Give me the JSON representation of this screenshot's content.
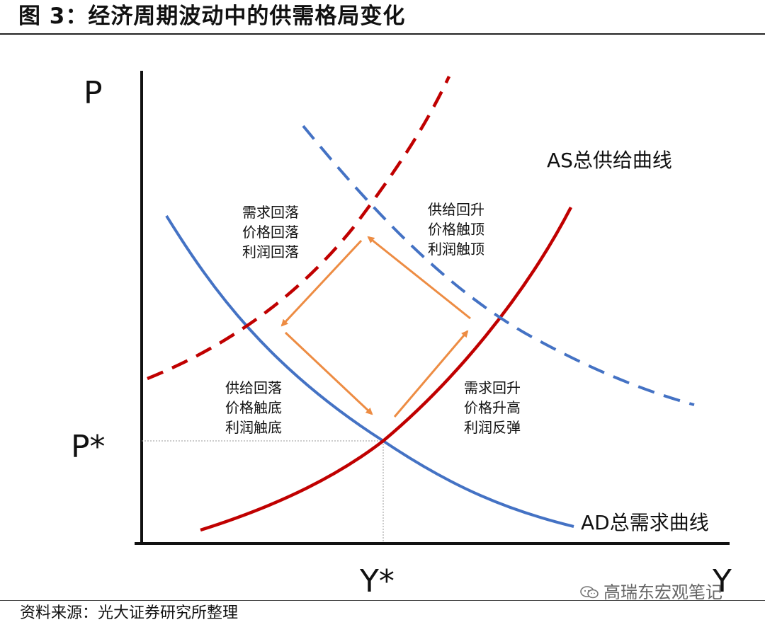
{
  "title": "图 3：经济周期波动中的供需格局变化",
  "source": "资料来源：光大证券研究所整理",
  "watermark": "高瑞东宏观笔记",
  "axes": {
    "y_label": "P",
    "x_label": "Y",
    "p_star": "P*",
    "y_star": "Y*"
  },
  "curves": {
    "as_label": "AS总供给曲线",
    "ad_label": "AD总需求曲线",
    "colors": {
      "as": "#c00000",
      "ad": "#4472c4",
      "arrows": "#ed8c43",
      "axes": "#111111",
      "guides": "#999999"
    }
  },
  "phases": {
    "top_left": [
      "需求回落",
      "价格回落",
      "利润回落"
    ],
    "top_right": [
      "供给回升",
      "价格触顶",
      "利润触顶"
    ],
    "bottom_left": [
      "供给回落",
      "价格触底",
      "利润触底"
    ],
    "bottom_right": [
      "需求回升",
      "价格升高",
      "利润反弹"
    ]
  }
}
